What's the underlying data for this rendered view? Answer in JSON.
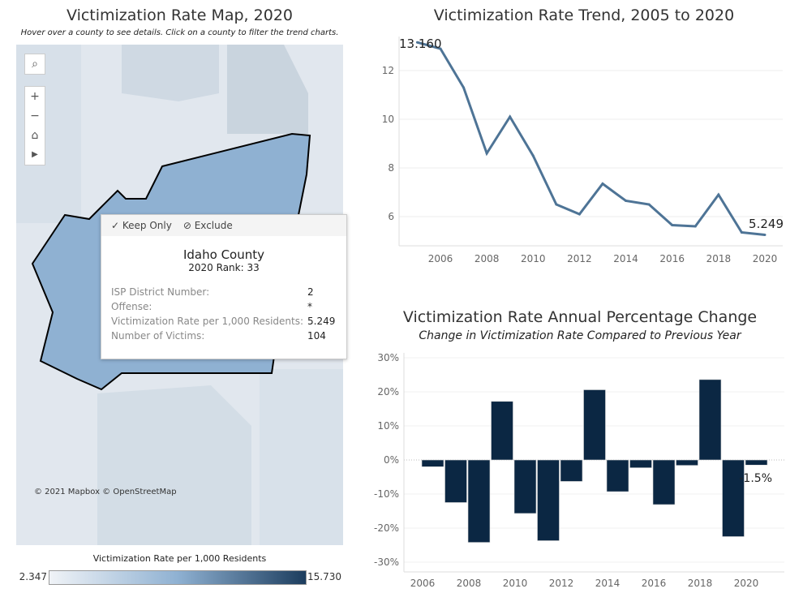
{
  "map": {
    "title": "Victimization Rate Map, 2020",
    "subtitle": "Hover over a county to see details. Click on a county to filter the trend charts.",
    "controls": [
      "search-icon",
      "zoom-in-icon",
      "zoom-out-icon",
      "home-icon",
      "play-icon"
    ],
    "attribution": "© 2021 Mapbox © OpenStreetMap",
    "legend": {
      "title": "Victimization Rate per 1,000 Residents",
      "min": "2.347",
      "max": "15.730",
      "color_low": "#f0f3f7",
      "color_high": "#1c3d5e"
    },
    "selected_color": "#8fb1d2"
  },
  "tooltip": {
    "keep_only": "Keep Only",
    "exclude": "Exclude",
    "county": "Idaho County",
    "rank": "2020 Rank: 33",
    "rows": [
      {
        "k": "ISP District Number:",
        "v": "2"
      },
      {
        "k": "Offense:",
        "v": "*"
      },
      {
        "k": "Victimization Rate per 1,000 Residents:",
        "v": "5.249"
      },
      {
        "k": "Number of Victims:",
        "v": "104"
      }
    ]
  },
  "chart_data": [
    {
      "type": "line",
      "title": "Victimization Rate Trend, 2005 to 2020",
      "color": "#4e7496",
      "x": [
        2005,
        2006,
        2007,
        2008,
        2009,
        2010,
        2011,
        2012,
        2013,
        2014,
        2015,
        2016,
        2017,
        2018,
        2019,
        2020
      ],
      "values": [
        13.16,
        12.9,
        11.3,
        8.6,
        10.1,
        8.5,
        6.5,
        6.1,
        7.35,
        6.65,
        6.5,
        5.65,
        5.6,
        6.9,
        5.35,
        5.249
      ],
      "yticks": [
        "6",
        "8",
        "10",
        "12"
      ],
      "xticks": [
        "2006",
        "2008",
        "2010",
        "2012",
        "2014",
        "2016",
        "2018",
        "2020"
      ],
      "labels": {
        "first": "13.160",
        "last": "5.249"
      },
      "grid": true
    },
    {
      "type": "bar",
      "title": "Victimization Rate Annual Percentage Change",
      "subtitle": "Change in Victimization Rate Compared to Previous Year",
      "color": "#0b2743",
      "x": [
        2006,
        2007,
        2008,
        2009,
        2010,
        2011,
        2012,
        2013,
        2014,
        2015,
        2016,
        2017,
        2018,
        2019,
        2020
      ],
      "values": [
        -2.0,
        -12.5,
        -24.2,
        17.2,
        -15.7,
        -23.7,
        -6.3,
        20.6,
        -9.3,
        -2.3,
        -13.1,
        -1.6,
        23.6,
        -22.5,
        -1.5
      ],
      "yticks": [
        "30%",
        "20%",
        "10%",
        "0%",
        "-10%",
        "-20%",
        "-30%"
      ],
      "xticks": [
        "2006",
        "2008",
        "2010",
        "2012",
        "2014",
        "2016",
        "2018",
        "2020"
      ],
      "ylim": [
        -30,
        30
      ],
      "labels": {
        "last": "-1.5%"
      },
      "grid": true
    }
  ]
}
